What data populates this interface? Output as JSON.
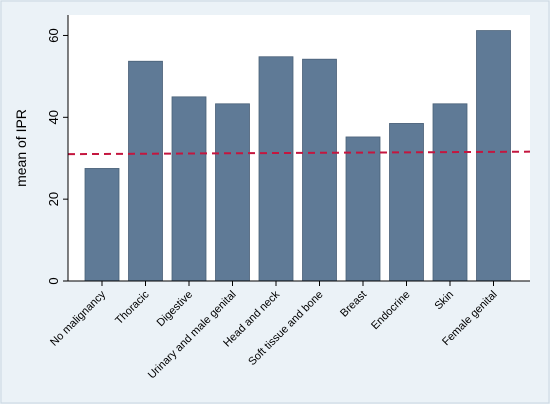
{
  "chart_data": {
    "type": "bar",
    "categories": [
      "No malignancy",
      "Thoracic",
      "Digestive",
      "Urinary and male genital",
      "Head and neck",
      "Soft tissue and bone",
      "Breast",
      "Endocrine",
      "Skin",
      "Female genital"
    ],
    "values": [
      27.5,
      53.7,
      45.0,
      43.3,
      54.8,
      54.2,
      35.2,
      38.5,
      43.3,
      61.2
    ],
    "ylabel": "mean of IPR",
    "xlabel": "",
    "title": "",
    "ylim": [
      0,
      65
    ],
    "yticks": [
      0,
      20,
      40,
      60
    ],
    "reference_line": {
      "y_start": 31.0,
      "y_end": 31.6,
      "style": "dashed"
    },
    "grid": false,
    "colors": {
      "bar": "#5f7a96",
      "bar_edge": "#4a6178",
      "line": "#c4163f",
      "outer_bg": "#ebf2f7",
      "plot_bg": "#ffffff"
    }
  }
}
